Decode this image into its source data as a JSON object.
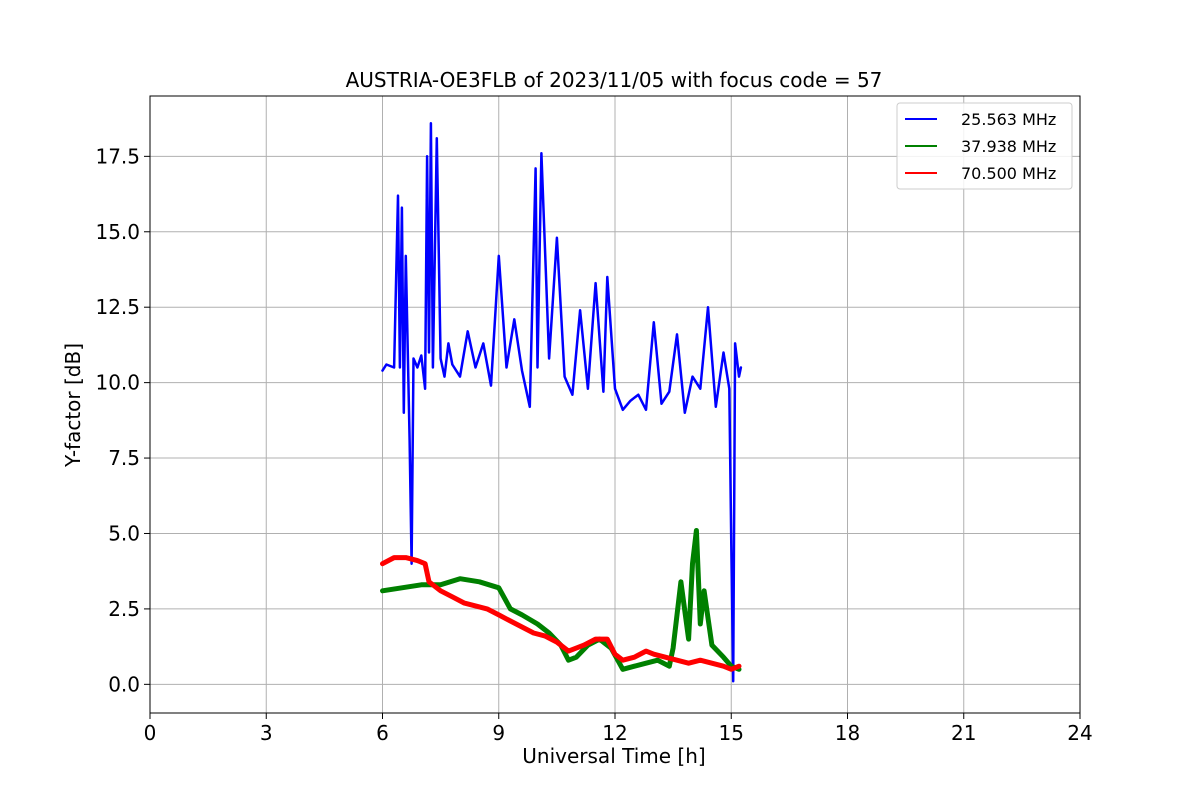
{
  "chart_data": {
    "type": "line",
    "title": "AUSTRIA-OE3FLB of 2023/11/05 with focus code = 57",
    "xlabel": "Universal Time [h]",
    "ylabel": "Y-factor [dB]",
    "xlim": [
      0,
      24
    ],
    "ylim": [
      -0.95,
      19.5
    ],
    "xticks": [
      0,
      3,
      6,
      9,
      12,
      15,
      18,
      21,
      24
    ],
    "xtick_labels": [
      "0",
      "3",
      "6",
      "9",
      "12",
      "15",
      "18",
      "21",
      "24"
    ],
    "yticks": [
      0,
      2.5,
      5,
      7.5,
      10,
      12.5,
      15,
      17.5
    ],
    "ytick_labels": [
      "0.0",
      "2.5",
      "5.0",
      "7.5",
      "10.0",
      "12.5",
      "15.0",
      "17.5"
    ],
    "grid": true,
    "legend_position": "top-right",
    "series": [
      {
        "name": "25.563 MHz",
        "color": "#0000ff",
        "x": [
          6.0,
          6.1,
          6.3,
          6.4,
          6.45,
          6.5,
          6.55,
          6.6,
          6.7,
          6.75,
          6.8,
          6.9,
          7.0,
          7.1,
          7.15,
          7.2,
          7.25,
          7.3,
          7.4,
          7.5,
          7.6,
          7.7,
          7.8,
          8.0,
          8.2,
          8.4,
          8.6,
          8.8,
          9.0,
          9.2,
          9.4,
          9.6,
          9.8,
          9.95,
          10.0,
          10.1,
          10.3,
          10.5,
          10.7,
          10.9,
          11.1,
          11.3,
          11.5,
          11.7,
          11.8,
          12.0,
          12.2,
          12.4,
          12.6,
          12.8,
          13.0,
          13.2,
          13.4,
          13.6,
          13.8,
          14.0,
          14.2,
          14.4,
          14.6,
          14.8,
          14.95,
          15.0,
          15.05,
          15.1,
          15.2,
          15.25
        ],
        "y": [
          10.4,
          10.6,
          10.5,
          16.2,
          10.5,
          15.8,
          9.0,
          14.2,
          8.1,
          4.0,
          10.8,
          10.5,
          10.9,
          9.8,
          17.5,
          11.0,
          18.6,
          10.5,
          18.1,
          10.8,
          10.2,
          11.3,
          10.6,
          10.2,
          11.7,
          10.5,
          11.3,
          9.9,
          14.2,
          10.5,
          12.1,
          10.4,
          9.2,
          17.1,
          10.5,
          17.6,
          10.8,
          14.8,
          10.2,
          9.6,
          12.4,
          9.8,
          13.3,
          9.7,
          13.5,
          9.8,
          9.1,
          9.4,
          9.6,
          9.1,
          12.0,
          9.3,
          9.7,
          11.6,
          9.0,
          10.2,
          9.8,
          12.5,
          9.2,
          11.0,
          9.8,
          4.6,
          0.1,
          11.3,
          10.2,
          10.5
        ]
      },
      {
        "name": "37.938 MHz",
        "color": "#008000",
        "x": [
          6.0,
          6.5,
          7.0,
          7.5,
          8.0,
          8.5,
          9.0,
          9.3,
          9.6,
          10.0,
          10.3,
          10.6,
          10.8,
          11.0,
          11.3,
          11.6,
          11.9,
          12.2,
          12.5,
          12.8,
          13.1,
          13.4,
          13.5,
          13.7,
          13.9,
          14.0,
          14.1,
          14.2,
          14.3,
          14.5,
          14.8,
          15.0,
          15.2
        ],
        "y": [
          3.1,
          3.2,
          3.3,
          3.3,
          3.5,
          3.4,
          3.2,
          2.5,
          2.3,
          2.0,
          1.7,
          1.3,
          0.8,
          0.9,
          1.3,
          1.5,
          1.2,
          0.5,
          0.6,
          0.7,
          0.8,
          0.6,
          1.2,
          3.4,
          1.5,
          4.0,
          5.1,
          2.0,
          3.1,
          1.3,
          0.9,
          0.6,
          0.5
        ]
      },
      {
        "name": "70.500 MHz",
        "color": "#ff0000",
        "x": [
          6.0,
          6.3,
          6.6,
          6.9,
          7.1,
          7.2,
          7.5,
          7.8,
          8.1,
          8.4,
          8.7,
          9.0,
          9.3,
          9.6,
          9.9,
          10.2,
          10.5,
          10.8,
          11.0,
          11.2,
          11.5,
          11.8,
          12.0,
          12.2,
          12.5,
          12.8,
          13.0,
          13.3,
          13.6,
          13.9,
          14.2,
          14.5,
          14.8,
          15.0,
          15.2
        ],
        "y": [
          4.0,
          4.2,
          4.2,
          4.1,
          4.0,
          3.4,
          3.1,
          2.9,
          2.7,
          2.6,
          2.5,
          2.3,
          2.1,
          1.9,
          1.7,
          1.6,
          1.4,
          1.1,
          1.2,
          1.3,
          1.5,
          1.5,
          1.0,
          0.8,
          0.9,
          1.1,
          1.0,
          0.9,
          0.8,
          0.7,
          0.8,
          0.7,
          0.6,
          0.5,
          0.6
        ]
      }
    ]
  }
}
